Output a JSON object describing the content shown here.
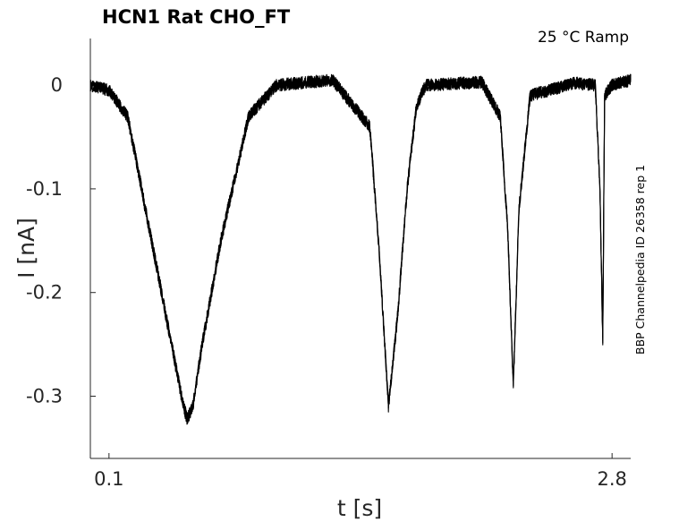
{
  "chart_data": {
    "type": "line",
    "title": "HCN1  Rat  CHO_FT",
    "annotation": "25 °C  Ramp",
    "side_label": "BBP Channelpedia ID 26358 rep 1",
    "xlabel": "t [s]",
    "ylabel": "I [nA]",
    "xlim": [
      0.0,
      2.9
    ],
    "ylim": [
      -0.36,
      0.045
    ],
    "xticks": [
      0.1,
      2.8
    ],
    "xtick_labels": [
      "0.1",
      "2.8"
    ],
    "yticks": [
      0,
      -0.1,
      -0.2,
      -0.3
    ],
    "ytick_labels": [
      "0",
      "-0.1",
      "-0.2",
      "-0.3"
    ],
    "grid": false,
    "color": "#000000",
    "series": [
      {
        "x": [
          0.0,
          0.1,
          0.2,
          0.5,
          0.52,
          0.55,
          0.6,
          0.7,
          0.85,
          1.0,
          1.3,
          1.5,
          1.55,
          1.6,
          1.65,
          1.7,
          1.75,
          1.8,
          2.1,
          2.2,
          2.24,
          2.27,
          2.3,
          2.36,
          2.6,
          2.71,
          2.735,
          2.75,
          2.76,
          2.8,
          2.9
        ],
        "y": [
          0.0,
          -0.005,
          -0.03,
          -0.31,
          -0.322,
          -0.31,
          -0.25,
          -0.15,
          -0.03,
          0.0,
          0.005,
          -0.04,
          -0.16,
          -0.31,
          -0.22,
          -0.1,
          -0.02,
          0.0,
          0.003,
          -0.03,
          -0.14,
          -0.29,
          -0.12,
          -0.01,
          0.002,
          0.0,
          -0.1,
          -0.25,
          -0.01,
          0.0,
          0.005
        ]
      }
    ]
  }
}
